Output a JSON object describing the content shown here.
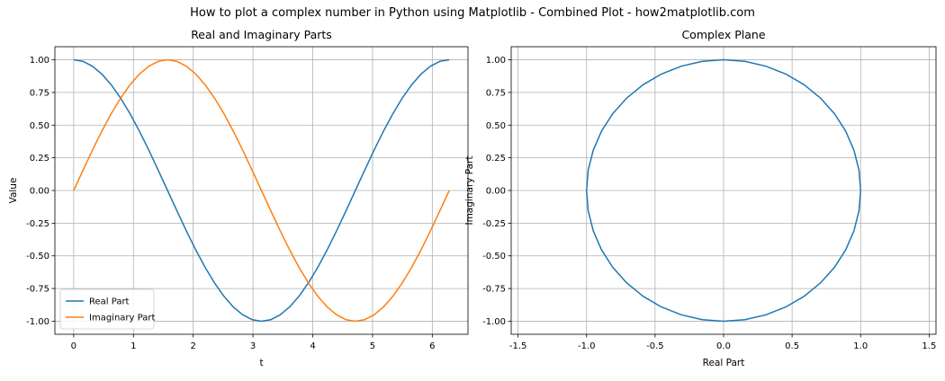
{
  "figure": {
    "suptitle": "How to plot a complex number in Python using Matplotlib - Combined Plot - how2matplotlib.com"
  },
  "chart_data": [
    {
      "type": "line",
      "title": "Real and Imaginary Parts",
      "xlabel": "t",
      "ylabel": "Value",
      "xlim": [
        -0.3142,
        6.5973
      ],
      "ylim": [
        -1.1,
        1.1
      ],
      "xticks": [
        0,
        1,
        2,
        3,
        4,
        5,
        6
      ],
      "xtick_labels": [
        "0",
        "1",
        "2",
        "3",
        "4",
        "5",
        "6"
      ],
      "yticks": [
        1.0,
        0.75,
        0.5,
        0.25,
        0.0,
        -0.25,
        -0.5,
        -0.75,
        -1.0
      ],
      "ytick_labels": [
        "1.00",
        "0.75",
        "0.50",
        "0.25",
        "0.00",
        "-0.25",
        "-0.50",
        "-0.75",
        "-1.00"
      ],
      "grid": true,
      "legend_position": "lower-left",
      "series": [
        {
          "name": "Real Part",
          "color": "#1f77b4",
          "x": [
            0,
            0.1571,
            0.3142,
            0.4712,
            0.6283,
            0.7854,
            0.9425,
            1.0996,
            1.2566,
            1.4137,
            1.5708,
            1.7279,
            1.885,
            2.042,
            2.1991,
            2.3562,
            2.5133,
            2.6704,
            2.8274,
            2.9845,
            3.1416,
            3.2987,
            3.4558,
            3.6128,
            3.7699,
            3.927,
            4.0841,
            4.2412,
            4.3982,
            4.5553,
            4.7124,
            4.8695,
            5.0265,
            5.1836,
            5.3407,
            5.4978,
            5.6549,
            5.8119,
            5.969,
            6.1261,
            6.2832
          ],
          "values": [
            1.0,
            0.988,
            0.951,
            0.891,
            0.809,
            0.707,
            0.588,
            0.454,
            0.309,
            0.156,
            0.0,
            -0.156,
            -0.309,
            -0.454,
            -0.588,
            -0.707,
            -0.809,
            -0.891,
            -0.951,
            -0.988,
            -1.0,
            -0.988,
            -0.951,
            -0.891,
            -0.809,
            -0.707,
            -0.588,
            -0.454,
            -0.309,
            -0.156,
            0.0,
            0.156,
            0.309,
            0.454,
            0.588,
            0.707,
            0.809,
            0.891,
            0.951,
            0.988,
            1.0
          ]
        },
        {
          "name": "Imaginary Part",
          "color": "#ff7f0e",
          "x": [
            0,
            0.1571,
            0.3142,
            0.4712,
            0.6283,
            0.7854,
            0.9425,
            1.0996,
            1.2566,
            1.4137,
            1.5708,
            1.7279,
            1.885,
            2.042,
            2.1991,
            2.3562,
            2.5133,
            2.6704,
            2.8274,
            2.9845,
            3.1416,
            3.2987,
            3.4558,
            3.6128,
            3.7699,
            3.927,
            4.0841,
            4.2412,
            4.3982,
            4.5553,
            4.7124,
            4.8695,
            5.0265,
            5.1836,
            5.3407,
            5.4978,
            5.6549,
            5.8119,
            5.969,
            6.1261,
            6.2832
          ],
          "values": [
            0.0,
            0.156,
            0.309,
            0.454,
            0.588,
            0.707,
            0.809,
            0.891,
            0.951,
            0.988,
            1.0,
            0.988,
            0.951,
            0.891,
            0.809,
            0.707,
            0.588,
            0.454,
            0.309,
            0.156,
            0.0,
            -0.156,
            -0.309,
            -0.454,
            -0.588,
            -0.707,
            -0.809,
            -0.891,
            -0.951,
            -0.988,
            -1.0,
            -0.988,
            -0.951,
            -0.891,
            -0.809,
            -0.707,
            -0.588,
            -0.454,
            -0.309,
            -0.156,
            0.0
          ]
        }
      ]
    },
    {
      "type": "line",
      "title": "Complex Plane",
      "xlabel": "Real Part",
      "ylabel": "Imaginary Part",
      "xlim": [
        -1.55,
        1.55
      ],
      "ylim": [
        -1.1,
        1.1
      ],
      "xticks": [
        -1.5,
        -1.0,
        -0.5,
        0.0,
        0.5,
        1.0,
        1.5
      ],
      "xtick_labels": [
        "-1.5",
        "-1.0",
        "-0.5",
        "0.0",
        "0.5",
        "1.0",
        "1.5"
      ],
      "yticks": [
        1.0,
        0.75,
        0.5,
        0.25,
        0.0,
        -0.25,
        -0.5,
        -0.75,
        -1.0
      ],
      "ytick_labels": [
        "1.00",
        "0.75",
        "0.50",
        "0.25",
        "0.00",
        "-0.25",
        "-0.50",
        "-0.75",
        "-1.00"
      ],
      "grid": true,
      "aspect": "equal",
      "series": [
        {
          "color": "#1f77b4",
          "x": [
            1.0,
            0.988,
            0.951,
            0.891,
            0.809,
            0.707,
            0.588,
            0.454,
            0.309,
            0.156,
            0.0,
            -0.156,
            -0.309,
            -0.454,
            -0.588,
            -0.707,
            -0.809,
            -0.891,
            -0.951,
            -0.988,
            -1.0,
            -0.988,
            -0.951,
            -0.891,
            -0.809,
            -0.707,
            -0.588,
            -0.454,
            -0.309,
            -0.156,
            0.0,
            0.156,
            0.309,
            0.454,
            0.588,
            0.707,
            0.809,
            0.891,
            0.951,
            0.988,
            1.0
          ],
          "values": [
            0.0,
            0.156,
            0.309,
            0.454,
            0.588,
            0.707,
            0.809,
            0.891,
            0.951,
            0.988,
            1.0,
            0.988,
            0.951,
            0.891,
            0.809,
            0.707,
            0.588,
            0.454,
            0.309,
            0.156,
            0.0,
            -0.156,
            -0.309,
            -0.454,
            -0.588,
            -0.707,
            -0.809,
            -0.891,
            -0.951,
            -0.988,
            -1.0,
            -0.988,
            -0.951,
            -0.891,
            -0.809,
            -0.707,
            -0.588,
            -0.454,
            -0.309,
            -0.156,
            0.0
          ]
        }
      ]
    }
  ]
}
